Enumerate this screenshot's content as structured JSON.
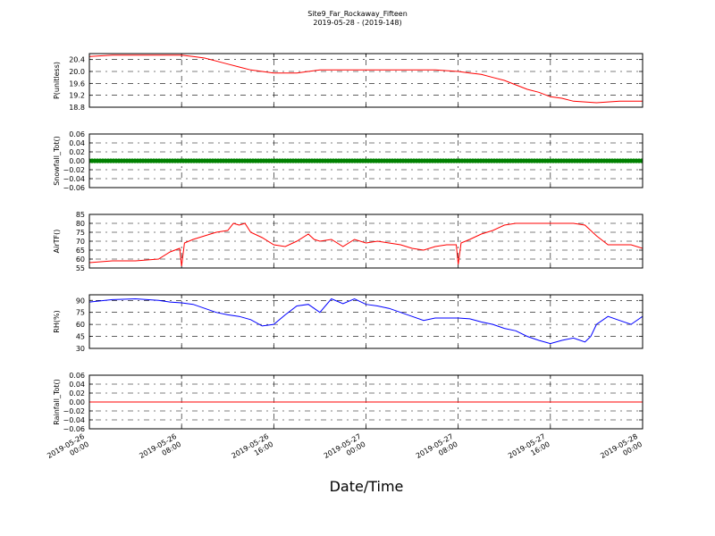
{
  "chart_data": {
    "type": "line",
    "title": "Site9_Far_Rockaway_Fifteen",
    "subtitle": "2019-05-28 - (2019-148)",
    "xlabel": "Date/Time",
    "xlim": [
      "2019-05-26 00:00",
      "2019-05-28 00:00"
    ],
    "x_ticks": [
      {
        "t": "2019-05-26 00:00",
        "line1": "2019-05-26",
        "line2": "00:00"
      },
      {
        "t": "2019-05-26 08:00",
        "line1": "2019-05-26",
        "line2": "08:00"
      },
      {
        "t": "2019-05-26 16:00",
        "line1": "2019-05-26",
        "line2": "16:00"
      },
      {
        "t": "2019-05-27 00:00",
        "line1": "2019-05-27",
        "line2": "00:00"
      },
      {
        "t": "2019-05-27 08:00",
        "line1": "2019-05-27",
        "line2": "08:00"
      },
      {
        "t": "2019-05-27 16:00",
        "line1": "2019-05-27",
        "line2": "16:00"
      },
      {
        "t": "2019-05-28 00:00",
        "line1": "2019-05-28",
        "line2": "00:00"
      }
    ],
    "grid": true,
    "panels": [
      {
        "ylabel": "P(unitless)",
        "ylim": [
          18.8,
          20.6
        ],
        "yticks": [
          "20.4",
          "20.0",
          "19.6",
          "19.2",
          "18.8"
        ],
        "color": "#ff0000",
        "marker": false,
        "series": [
          {
            "x": [
              "2019-05-26 00:00",
              "2019-05-26 02:00",
              "2019-05-26 04:00",
              "2019-05-26 06:00",
              "2019-05-26 08:00",
              "2019-05-26 09:00",
              "2019-05-26 10:00",
              "2019-05-26 11:00",
              "2019-05-26 12:00",
              "2019-05-26 13:00",
              "2019-05-26 14:00",
              "2019-05-26 15:00",
              "2019-05-26 16:00",
              "2019-05-26 18:00",
              "2019-05-26 20:00",
              "2019-05-26 22:00",
              "2019-05-27 00:00",
              "2019-05-27 02:00",
              "2019-05-27 04:00",
              "2019-05-27 06:00",
              "2019-05-27 08:00",
              "2019-05-27 09:00",
              "2019-05-27 10:00",
              "2019-05-27 11:00",
              "2019-05-27 12:00",
              "2019-05-27 13:00",
              "2019-05-27 14:00",
              "2019-05-27 15:00",
              "2019-05-27 16:00",
              "2019-05-27 17:00",
              "2019-05-27 18:00",
              "2019-05-27 20:00",
              "2019-05-27 22:00",
              "2019-05-28 00:00"
            ],
            "y": [
              20.5,
              20.55,
              20.55,
              20.55,
              20.55,
              20.5,
              20.45,
              20.35,
              20.25,
              20.15,
              20.05,
              20.0,
              19.95,
              19.95,
              20.05,
              20.05,
              20.05,
              20.05,
              20.05,
              20.05,
              20.0,
              19.95,
              19.9,
              19.8,
              19.7,
              19.55,
              19.4,
              19.3,
              19.15,
              19.1,
              19.0,
              18.95,
              19.0,
              19.0
            ]
          }
        ]
      },
      {
        "ylabel": "Snowfall_Tot()",
        "ylim": [
          -0.06,
          0.06
        ],
        "yticks": [
          "0.06",
          "0.04",
          "0.02",
          "0.00",
          "−0.02",
          "−0.04",
          "−0.06"
        ],
        "color": "#008000",
        "marker": true,
        "series": [
          {
            "x": [
              "2019-05-26 00:00",
              "2019-05-28 00:00"
            ],
            "y": [
              0.0,
              0.0
            ]
          }
        ]
      },
      {
        "ylabel": "AirTF()",
        "ylim": [
          55,
          85
        ],
        "yticks": [
          "85",
          "80",
          "75",
          "70",
          "65",
          "60",
          "55"
        ],
        "color": "#ff0000",
        "marker": false,
        "series": [
          {
            "x": [
              "2019-05-26 00:00",
              "2019-05-26 02:00",
              "2019-05-26 04:00",
              "2019-05-26 06:00",
              "2019-05-26 07:00",
              "2019-05-26 07:50",
              "2019-05-26 08:00",
              "2019-05-26 08:15",
              "2019-05-26 09:00",
              "2019-05-26 10:00",
              "2019-05-26 11:00",
              "2019-05-26 12:00",
              "2019-05-26 12:30",
              "2019-05-26 13:00",
              "2019-05-26 13:30",
              "2019-05-26 14:00",
              "2019-05-26 15:00",
              "2019-05-26 16:00",
              "2019-05-26 17:00",
              "2019-05-26 18:00",
              "2019-05-26 19:00",
              "2019-05-26 19:30",
              "2019-05-26 20:00",
              "2019-05-26 21:00",
              "2019-05-26 22:00",
              "2019-05-26 23:00",
              "2019-05-27 00:00",
              "2019-05-27 01:00",
              "2019-05-27 02:00",
              "2019-05-27 03:00",
              "2019-05-27 04:00",
              "2019-05-27 05:00",
              "2019-05-27 06:00",
              "2019-05-27 07:00",
              "2019-05-27 07:50",
              "2019-05-27 08:00",
              "2019-05-27 08:15",
              "2019-05-27 09:00",
              "2019-05-27 10:00",
              "2019-05-27 11:00",
              "2019-05-27 12:00",
              "2019-05-27 13:00",
              "2019-05-27 14:00",
              "2019-05-27 15:00",
              "2019-05-27 16:00",
              "2019-05-27 17:00",
              "2019-05-27 18:00",
              "2019-05-27 19:00",
              "2019-05-27 20:00",
              "2019-05-27 21:00",
              "2019-05-27 22:00",
              "2019-05-27 23:00",
              "2019-05-28 00:00"
            ],
            "y": [
              58,
              59,
              59,
              60,
              64,
              66,
              56,
              69,
              71,
              73,
              75,
              76,
              80,
              79,
              80,
              75,
              72,
              68,
              67,
              70,
              74,
              71,
              70,
              71,
              67,
              71,
              69,
              70,
              69,
              68,
              66,
              65,
              67,
              68,
              68,
              57,
              69,
              71,
              74,
              76,
              79,
              80,
              80,
              80,
              80,
              80,
              80,
              79,
              73,
              68,
              68,
              68,
              66
            ]
          }
        ]
      },
      {
        "ylabel": "RH(%)",
        "ylim": [
          30,
          97
        ],
        "yticks": [
          "90",
          "75",
          "60",
          "45",
          "30"
        ],
        "color": "#0000ff",
        "marker": false,
        "series": [
          {
            "x": [
              "2019-05-26 00:00",
              "2019-05-26 02:00",
              "2019-05-26 04:00",
              "2019-05-26 06:00",
              "2019-05-26 07:00",
              "2019-05-26 08:00",
              "2019-05-26 09:00",
              "2019-05-26 10:00",
              "2019-05-26 11:00",
              "2019-05-26 12:00",
              "2019-05-26 13:00",
              "2019-05-26 14:00",
              "2019-05-26 15:00",
              "2019-05-26 16:00",
              "2019-05-26 17:00",
              "2019-05-26 18:00",
              "2019-05-26 19:00",
              "2019-05-26 20:00",
              "2019-05-26 21:00",
              "2019-05-26 22:00",
              "2019-05-26 23:00",
              "2019-05-27 00:00",
              "2019-05-27 01:00",
              "2019-05-27 02:00",
              "2019-05-27 03:00",
              "2019-05-27 04:00",
              "2019-05-27 05:00",
              "2019-05-27 06:00",
              "2019-05-27 07:00",
              "2019-05-27 08:00",
              "2019-05-27 09:00",
              "2019-05-27 10:00",
              "2019-05-27 11:00",
              "2019-05-27 12:00",
              "2019-05-27 13:00",
              "2019-05-27 14:00",
              "2019-05-27 15:00",
              "2019-05-27 16:00",
              "2019-05-27 17:00",
              "2019-05-27 18:00",
              "2019-05-27 19:00",
              "2019-05-27 19:30",
              "2019-05-27 20:00",
              "2019-05-27 21:00",
              "2019-05-27 22:00",
              "2019-05-27 23:00",
              "2019-05-28 00:00"
            ],
            "y": [
              88,
              91,
              92,
              90,
              88,
              87,
              85,
              80,
              75,
              72,
              70,
              66,
              58,
              60,
              72,
              83,
              85,
              75,
              92,
              86,
              92,
              85,
              83,
              80,
              75,
              70,
              65,
              68,
              68,
              68,
              67,
              63,
              60,
              55,
              52,
              45,
              40,
              36,
              40,
              43,
              38,
              45,
              60,
              70,
              65,
              60,
              70
            ]
          }
        ]
      },
      {
        "ylabel": "Rainfall_Tot()",
        "ylim": [
          -0.06,
          0.06
        ],
        "yticks": [
          "0.06",
          "0.04",
          "0.02",
          "0.00",
          "−0.02",
          "−0.04",
          "−0.06"
        ],
        "color": "#ff0000",
        "marker": false,
        "series": [
          {
            "x": [
              "2019-05-26 00:00",
              "2019-05-28 00:00"
            ],
            "y": [
              0.0,
              0.0
            ]
          }
        ]
      }
    ]
  }
}
